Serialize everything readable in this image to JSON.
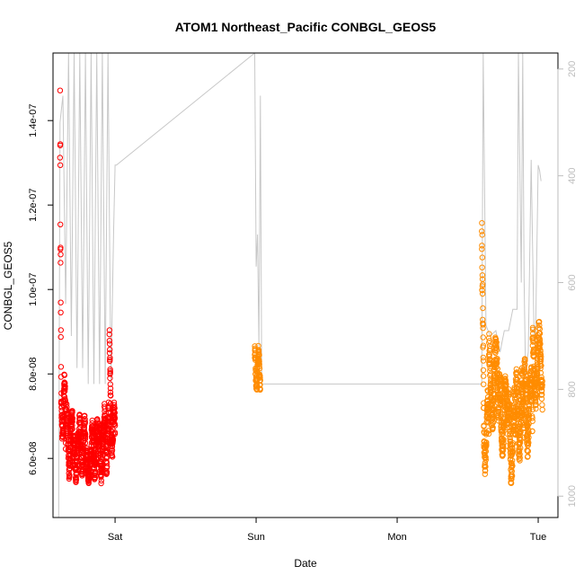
{
  "chart_data": {
    "type": "scatter",
    "title": "ATOM1 Northeast_Pacific CONBGL_GEOS5",
    "xlabel": "Date",
    "ylabel": "CONBGL_GEOS5",
    "x_ticks": [
      "Sat",
      "Sun",
      "Mon",
      "Tue"
    ],
    "xlim_days": [
      -0.44,
      3.14
    ],
    "ylim": [
      4.6e-08,
      1.56e-07
    ],
    "y_ticks": [
      {
        "value": 6e-08,
        "label": "6.0e-08"
      },
      {
        "value": 8e-08,
        "label": "8.0e-08"
      },
      {
        "value": 1e-07,
        "label": "1.0e-07"
      },
      {
        "value": 1.2e-07,
        "label": "1.2e-07"
      },
      {
        "value": 1.4e-07,
        "label": "1.4e-07"
      }
    ],
    "y2_reversed": true,
    "y2lim": [
      1040,
      170
    ],
    "y2_ticks": [
      "200",
      "400",
      "600",
      "800",
      "1000"
    ],
    "grid": false,
    "series": [
      {
        "color": "#ff0000",
        "marker": "open-circle",
        "segments": [
          {
            "start": -0.39,
            "end": -0.35,
            "base": 7.2e-08,
            "amp": 5.5e-09,
            "hi": 1.52e-07,
            "hiFrac": 0.18
          },
          {
            "start": -0.35,
            "end": -0.3,
            "base": 6.4e-08,
            "amp": 6e-09
          },
          {
            "start": -0.3,
            "end": -0.26,
            "base": 6e-08,
            "amp": 4e-09
          },
          {
            "start": -0.26,
            "end": -0.21,
            "base": 6.3e-08,
            "amp": 5e-09
          },
          {
            "start": -0.21,
            "end": -0.17,
            "base": 5.8e-08,
            "amp": 3e-09
          },
          {
            "start": -0.17,
            "end": -0.12,
            "base": 6.2e-08,
            "amp": 5e-09
          },
          {
            "start": -0.12,
            "end": -0.08,
            "base": 6.1e-08,
            "amp": 5e-09
          },
          {
            "start": -0.08,
            "end": -0.04,
            "base": 6.5e-08,
            "amp": 6e-09
          },
          {
            "start": -0.04,
            "end": 0.0,
            "base": 6.7e-08,
            "amp": 5e-09,
            "hi": 9.4e-08,
            "hiFrac": 0.25
          }
        ]
      },
      {
        "color": "#ff8c00",
        "marker": "open-circle",
        "segments": [
          {
            "start": 0.99,
            "end": 1.03,
            "base": 8.1e-08,
            "amp": 4e-09
          },
          {
            "start": 2.6,
            "end": 2.65,
            "base": 6.6e-08,
            "amp": 7e-09,
            "hi": 1.24e-07,
            "hiFrac": 0.3
          },
          {
            "start": 2.65,
            "end": 2.72,
            "base": 7.8e-08,
            "amp": 8e-09
          },
          {
            "start": 2.72,
            "end": 2.78,
            "base": 7e-08,
            "amp": 7e-09
          },
          {
            "start": 2.78,
            "end": 2.84,
            "base": 6.5e-08,
            "amp": 8e-09
          },
          {
            "start": 2.84,
            "end": 2.9,
            "base": 7e-08,
            "amp": 8e-09
          },
          {
            "start": 2.9,
            "end": 2.96,
            "base": 7.2e-08,
            "amp": 8e-09
          },
          {
            "start": 2.96,
            "end": 3.03,
            "base": 8.2e-08,
            "amp": 7e-09
          }
        ]
      }
    ],
    "secondary_line": {
      "color": "#c8c8c8",
      "axis": "y2",
      "points": [
        [
          -0.4,
          1040
        ],
        [
          -0.39,
          300
        ],
        [
          -0.37,
          250
        ],
        [
          -0.35,
          640
        ],
        [
          -0.33,
          170
        ],
        [
          -0.31,
          700
        ],
        [
          -0.29,
          170
        ],
        [
          -0.27,
          760
        ],
        [
          -0.25,
          170
        ],
        [
          -0.23,
          760
        ],
        [
          -0.21,
          170
        ],
        [
          -0.19,
          790
        ],
        [
          -0.17,
          170
        ],
        [
          -0.15,
          790
        ],
        [
          -0.13,
          170
        ],
        [
          -0.11,
          790
        ],
        [
          -0.09,
          170
        ],
        [
          -0.07,
          790
        ],
        [
          -0.05,
          170
        ],
        [
          -0.03,
          790
        ],
        [
          -0.01,
          500
        ],
        [
          0.0,
          380
        ],
        [
          0.01,
          380
        ],
        [
          0.99,
          170
        ],
        [
          1.0,
          570
        ],
        [
          1.01,
          510
        ],
        [
          1.02,
          720
        ],
        [
          1.03,
          250
        ],
        [
          1.04,
          790
        ],
        [
          1.1,
          790
        ],
        [
          1.25,
          790
        ],
        [
          1.5,
          790
        ],
        [
          2.6,
          790
        ],
        [
          2.61,
          170
        ],
        [
          2.63,
          680
        ],
        [
          2.66,
          700
        ],
        [
          2.7,
          690
        ],
        [
          2.73,
          730
        ],
        [
          2.76,
          690
        ],
        [
          2.79,
          690
        ],
        [
          2.82,
          650
        ],
        [
          2.85,
          650
        ],
        [
          2.86,
          170
        ],
        [
          2.88,
          600
        ],
        [
          2.89,
          170
        ],
        [
          2.9,
          590
        ],
        [
          2.91,
          770
        ],
        [
          2.93,
          730
        ],
        [
          2.95,
          370
        ],
        [
          2.97,
          690
        ],
        [
          2.98,
          720
        ],
        [
          3.0,
          380
        ],
        [
          3.01,
          390
        ],
        [
          3.02,
          410
        ]
      ]
    }
  }
}
